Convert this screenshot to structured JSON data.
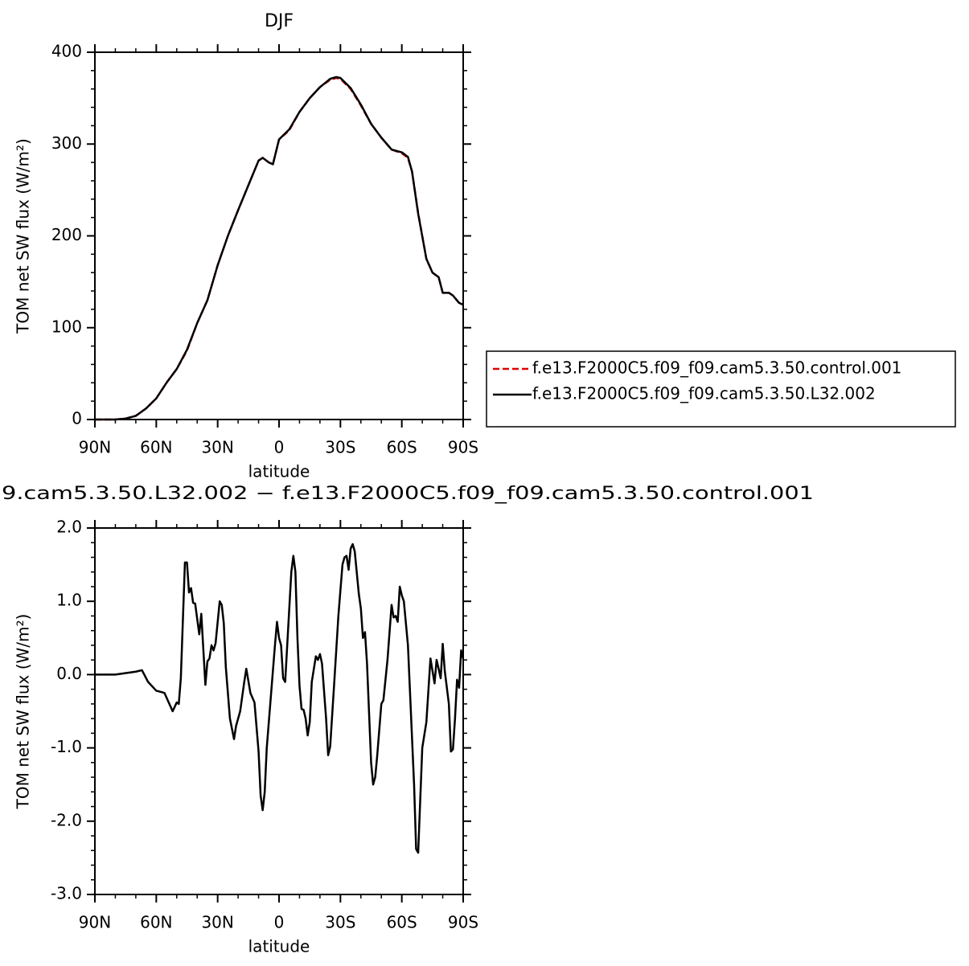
{
  "chart_data": [
    {
      "type": "line",
      "title": "DJF",
      "x_label": "latitude",
      "y_label": "TOM net SW flux (W/m²)",
      "x": [
        90,
        80,
        75,
        70,
        65,
        60,
        55,
        50,
        45,
        40,
        35,
        30,
        25,
        20,
        15,
        10,
        8,
        5,
        3,
        0,
        -5,
        -10,
        -15,
        -20,
        -25,
        -28,
        -30,
        -35,
        -40,
        -45,
        -50,
        -55,
        -60,
        -63,
        -65,
        -68,
        -72,
        -75,
        -78,
        -80,
        -83,
        -85,
        -88,
        -90
      ],
      "xlim": [
        90,
        -90
      ],
      "xticks": [
        {
          "value": 90,
          "label": "90N"
        },
        {
          "value": 60,
          "label": "60N"
        },
        {
          "value": 30,
          "label": "30N"
        },
        0,
        {
          "value": -30,
          "label": "30S"
        },
        {
          "value": -60,
          "label": "60S"
        },
        {
          "value": -90,
          "label": "90S"
        }
      ],
      "ylim": [
        0,
        400
      ],
      "yticks": [
        0,
        100,
        200,
        300,
        400
      ],
      "legend": "right",
      "series": [
        {
          "name": "f.e13.F2000C5.f09_f09.cam5.3.50.control.001",
          "color": "#e00000",
          "linestyle": "dashed",
          "values": [
            0,
            0,
            1,
            4,
            12,
            23,
            40,
            55,
            75,
            105,
            130,
            168,
            200,
            228,
            255,
            282,
            285,
            280,
            278,
            305,
            315,
            335,
            350,
            362,
            370,
            372,
            371,
            360,
            342,
            322,
            307,
            294,
            290,
            285,
            270,
            225,
            175,
            160,
            155,
            138,
            138,
            135,
            127,
            125
          ]
        },
        {
          "name": "f.e13.F2000C5.f09_f09.cam5.3.50.L32.002",
          "color": "#000000",
          "linestyle": "solid",
          "values": [
            0,
            0,
            1,
            4,
            12,
            23,
            40,
            55,
            76,
            105,
            130,
            168,
            200,
            228,
            255,
            282,
            285,
            280,
            278,
            305,
            316,
            335,
            350,
            362,
            371,
            373,
            372,
            361,
            343,
            322,
            307,
            294,
            291,
            286,
            270,
            224,
            175,
            160,
            155,
            138,
            138,
            135,
            127,
            125
          ]
        }
      ]
    },
    {
      "type": "line",
      "title": "9.cam5.3.50.L32.002 − f.e13.F2000C5.f09_f09.cam5.3.50.control.001",
      "x_label": "latitude",
      "y_label": "TOM net SW flux (W/m²)",
      "x": [
        90,
        80,
        70,
        67,
        64,
        60,
        56,
        52,
        50,
        49,
        48,
        46,
        45,
        44,
        43,
        42,
        41,
        39,
        38,
        36,
        35,
        34,
        33,
        32,
        31,
        29,
        28,
        27,
        26,
        24,
        22,
        21,
        19,
        17,
        16,
        14,
        12,
        10,
        9,
        8,
        7,
        6,
        4,
        2,
        1,
        0,
        -1,
        -2,
        -3,
        -5,
        -6,
        -7,
        -8,
        -9,
        -10,
        -11,
        -12,
        -13,
        -14,
        -15,
        -16,
        -18,
        -19,
        -20,
        -21,
        -23,
        -24,
        -25,
        -27,
        -29,
        -31,
        -32,
        -33,
        -34,
        -35,
        -36,
        -37,
        -39,
        -40,
        -41,
        -42,
        -43,
        -45,
        -46,
        -47,
        -48,
        -50,
        -51,
        -53,
        -55,
        -56,
        -57,
        -58,
        -59,
        -60,
        -61,
        -63,
        -66,
        -67,
        -68,
        -70,
        -72,
        -74,
        -75,
        -76,
        -77,
        -78,
        -79,
        -80,
        -81,
        -83,
        -84,
        -85,
        -86,
        -87,
        -88,
        -89,
        -90
      ],
      "xlim": [
        90,
        -90
      ],
      "xticks": [
        {
          "value": 90,
          "label": "90N"
        },
        {
          "value": 60,
          "label": "60N"
        },
        {
          "value": 30,
          "label": "30N"
        },
        0,
        {
          "value": -30,
          "label": "30S"
        },
        {
          "value": -60,
          "label": "60S"
        },
        {
          "value": -90,
          "label": "90S"
        }
      ],
      "ylim": [
        -3,
        2
      ],
      "yticks": [
        {
          "value": -3,
          "label": "-3.0"
        },
        {
          "value": -2,
          "label": "-2.0"
        },
        {
          "value": -1,
          "label": "-1.0"
        },
        {
          "value": 0,
          "label": "0.0"
        },
        {
          "value": 1,
          "label": "1.0"
        },
        {
          "value": 2,
          "label": "2.0"
        }
      ],
      "series": [
        {
          "color": "#000000",
          "linestyle": "solid",
          "values": [
            0,
            0,
            0.04,
            0.06,
            -0.1,
            -0.22,
            -0.25,
            -0.5,
            -0.38,
            -0.4,
            -0.05,
            1.53,
            1.53,
            1.12,
            1.18,
            0.98,
            0.97,
            0.55,
            0.83,
            -0.14,
            0.18,
            0.22,
            0.4,
            0.33,
            0.43,
            1.0,
            0.95,
            0.7,
            0.1,
            -0.6,
            -0.88,
            -0.7,
            -0.5,
            -0.1,
            0.08,
            -0.25,
            -0.38,
            -1.05,
            -1.65,
            -1.85,
            -1.6,
            -1.0,
            -0.3,
            0.4,
            0.72,
            0.5,
            0.4,
            -0.05,
            -0.1,
            0.9,
            1.4,
            1.62,
            1.4,
            0.5,
            -0.15,
            -0.47,
            -0.48,
            -0.6,
            -0.83,
            -0.65,
            -0.1,
            0.25,
            0.2,
            0.28,
            0.15,
            -0.6,
            -1.1,
            -0.98,
            -0.1,
            0.8,
            1.5,
            1.6,
            1.62,
            1.43,
            1.72,
            1.78,
            1.68,
            1.1,
            0.9,
            0.5,
            0.58,
            0.15,
            -1.2,
            -1.5,
            -1.4,
            -1.1,
            -0.4,
            -0.35,
            0.2,
            0.95,
            0.78,
            0.8,
            0.72,
            1.2,
            1.08,
            1.0,
            0.4,
            -1.5,
            -2.38,
            -2.43,
            -1.0,
            -0.65,
            0.22,
            0.05,
            -0.12,
            0.2,
            0.08,
            -0.05,
            0.42,
            0.05,
            -0.4,
            -1.05,
            -1.02,
            -0.6,
            -0.07,
            -0.18,
            0.33,
            0.22
          ]
        }
      ]
    }
  ]
}
